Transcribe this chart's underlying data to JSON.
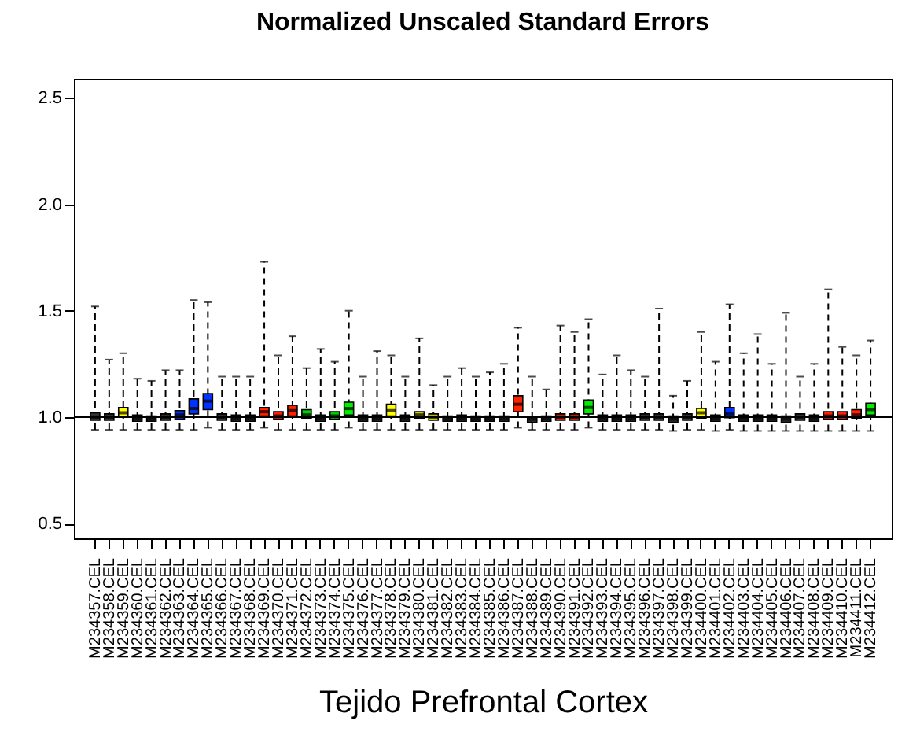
{
  "chart_data": {
    "type": "box",
    "title": "Normalized Unscaled Standard Errors",
    "xlabel": "Tejido Prefrontal Cortex",
    "categories": [
      "M234357.CEL",
      "M234358.CEL",
      "M234359.CEL",
      "M234360.CEL",
      "M234361.CEL",
      "M234362.CEL",
      "M234363.CEL",
      "M234364.CEL",
      "M234365.CEL",
      "M234366.CEL",
      "M234367.CEL",
      "M234368.CEL",
      "M234369.CEL",
      "M234370.CEL",
      "M234371.CEL",
      "M234372.CEL",
      "M234373.CEL",
      "M234374.CEL",
      "M234375.CEL",
      "M234376.CEL",
      "M234377.CEL",
      "M234378.CEL",
      "M234379.CEL",
      "M234380.CEL",
      "M234381.CEL",
      "M234382.CEL",
      "M234383.CEL",
      "M234384.CEL",
      "M234385.CEL",
      "M234386.CEL",
      "M234387.CEL",
      "M234388.CEL",
      "M234389.CEL",
      "M234390.CEL",
      "M234391.CEL",
      "M234392.CEL",
      "M234393.CEL",
      "M234394.CEL",
      "M234395.CEL",
      "M234396.CEL",
      "M234397.CEL",
      "M234398.CEL",
      "M234399.CEL",
      "M234400.CEL",
      "M234401.CEL",
      "M234402.CEL",
      "M234403.CEL",
      "M234404.CEL",
      "M234405.CEL",
      "M234406.CEL",
      "M234407.CEL",
      "M234408.CEL",
      "M234409.CEL",
      "M234410.CEL",
      "M234411.CEL",
      "M234412.CEL"
    ],
    "boxes": [
      {
        "low": 0.94,
        "q1": 0.985,
        "median": 1.0,
        "q3": 1.02,
        "high": 1.52
      },
      {
        "low": 0.94,
        "q1": 0.985,
        "median": 1.0,
        "q3": 1.015,
        "high": 1.27
      },
      {
        "low": 0.94,
        "q1": 1.0,
        "median": 1.02,
        "q3": 1.045,
        "high": 1.3
      },
      {
        "low": 0.94,
        "q1": 0.98,
        "median": 0.995,
        "q3": 1.01,
        "high": 1.18
      },
      {
        "low": 0.94,
        "q1": 0.98,
        "median": 0.99,
        "q3": 1.005,
        "high": 1.17
      },
      {
        "low": 0.94,
        "q1": 0.985,
        "median": 1.0,
        "q3": 1.015,
        "high": 1.22
      },
      {
        "low": 0.94,
        "q1": 0.99,
        "median": 1.01,
        "q3": 1.03,
        "high": 1.22
      },
      {
        "low": 0.94,
        "q1": 1.015,
        "median": 1.04,
        "q3": 1.085,
        "high": 1.55
      },
      {
        "low": 0.95,
        "q1": 1.035,
        "median": 1.075,
        "q3": 1.11,
        "high": 1.54
      },
      {
        "low": 0.94,
        "q1": 0.985,
        "median": 1.0,
        "q3": 1.015,
        "high": 1.19
      },
      {
        "low": 0.94,
        "q1": 0.98,
        "median": 0.995,
        "q3": 1.01,
        "high": 1.19
      },
      {
        "low": 0.94,
        "q1": 0.98,
        "median": 0.995,
        "q3": 1.01,
        "high": 1.19
      },
      {
        "low": 0.95,
        "q1": 1.005,
        "median": 1.025,
        "q3": 1.045,
        "high": 1.73
      },
      {
        "low": 0.94,
        "q1": 0.99,
        "median": 1.005,
        "q3": 1.025,
        "high": 1.29
      },
      {
        "low": 0.94,
        "q1": 1.005,
        "median": 1.03,
        "q3": 1.055,
        "high": 1.38
      },
      {
        "low": 0.94,
        "q1": 0.995,
        "median": 1.01,
        "q3": 1.035,
        "high": 1.23
      },
      {
        "low": 0.94,
        "q1": 0.98,
        "median": 0.995,
        "q3": 1.01,
        "high": 1.32
      },
      {
        "low": 0.94,
        "q1": 0.99,
        "median": 1.005,
        "q3": 1.025,
        "high": 1.26
      },
      {
        "low": 0.95,
        "q1": 1.01,
        "median": 1.04,
        "q3": 1.07,
        "high": 1.5
      },
      {
        "low": 0.94,
        "q1": 0.98,
        "median": 0.995,
        "q3": 1.01,
        "high": 1.19
      },
      {
        "low": 0.94,
        "q1": 0.98,
        "median": 0.995,
        "q3": 1.01,
        "high": 1.31
      },
      {
        "low": 0.94,
        "q1": 1.005,
        "median": 1.03,
        "q3": 1.06,
        "high": 1.29
      },
      {
        "low": 0.94,
        "q1": 0.98,
        "median": 0.995,
        "q3": 1.01,
        "high": 1.19
      },
      {
        "low": 0.94,
        "q1": 0.995,
        "median": 1.01,
        "q3": 1.025,
        "high": 1.37
      },
      {
        "low": 0.94,
        "q1": 0.985,
        "median": 1.0,
        "q3": 1.015,
        "high": 1.15
      },
      {
        "low": 0.94,
        "q1": 0.98,
        "median": 0.99,
        "q3": 1.005,
        "high": 1.19
      },
      {
        "low": 0.94,
        "q1": 0.98,
        "median": 0.995,
        "q3": 1.01,
        "high": 1.23
      },
      {
        "low": 0.94,
        "q1": 0.98,
        "median": 0.99,
        "q3": 1.005,
        "high": 1.19
      },
      {
        "low": 0.94,
        "q1": 0.98,
        "median": 0.99,
        "q3": 1.005,
        "high": 1.21
      },
      {
        "low": 0.94,
        "q1": 0.98,
        "median": 0.995,
        "q3": 1.005,
        "high": 1.25
      },
      {
        "low": 0.95,
        "q1": 1.025,
        "median": 1.06,
        "q3": 1.1,
        "high": 1.42
      },
      {
        "low": 0.94,
        "q1": 0.975,
        "median": 0.99,
        "q3": 1.0,
        "high": 1.19
      },
      {
        "low": 0.94,
        "q1": 0.98,
        "median": 0.995,
        "q3": 1.005,
        "high": 1.13
      },
      {
        "low": 0.94,
        "q1": 0.985,
        "median": 1.0,
        "q3": 1.015,
        "high": 1.43
      },
      {
        "low": 0.94,
        "q1": 0.985,
        "median": 1.0,
        "q3": 1.015,
        "high": 1.4
      },
      {
        "low": 0.95,
        "q1": 1.015,
        "median": 1.045,
        "q3": 1.08,
        "high": 1.46
      },
      {
        "low": 0.94,
        "q1": 0.98,
        "median": 0.995,
        "q3": 1.01,
        "high": 1.2
      },
      {
        "low": 0.94,
        "q1": 0.98,
        "median": 0.995,
        "q3": 1.01,
        "high": 1.29
      },
      {
        "low": 0.94,
        "q1": 0.98,
        "median": 0.995,
        "q3": 1.01,
        "high": 1.22
      },
      {
        "low": 0.94,
        "q1": 0.985,
        "median": 1.0,
        "q3": 1.015,
        "high": 1.19
      },
      {
        "low": 0.94,
        "q1": 0.985,
        "median": 1.0,
        "q3": 1.015,
        "high": 1.51
      },
      {
        "low": 0.935,
        "q1": 0.975,
        "median": 0.99,
        "q3": 1.005,
        "high": 1.1
      },
      {
        "low": 0.94,
        "q1": 0.985,
        "median": 1.0,
        "q3": 1.015,
        "high": 1.17
      },
      {
        "low": 0.94,
        "q1": 0.995,
        "median": 1.02,
        "q3": 1.04,
        "high": 1.4
      },
      {
        "low": 0.935,
        "q1": 0.98,
        "median": 0.995,
        "q3": 1.01,
        "high": 1.26
      },
      {
        "low": 0.94,
        "q1": 0.997,
        "median": 1.015,
        "q3": 1.045,
        "high": 1.53
      },
      {
        "low": 0.935,
        "q1": 0.98,
        "median": 0.995,
        "q3": 1.01,
        "high": 1.3
      },
      {
        "low": 0.935,
        "q1": 0.98,
        "median": 0.995,
        "q3": 1.01,
        "high": 1.39
      },
      {
        "low": 0.935,
        "q1": 0.98,
        "median": 0.995,
        "q3": 1.01,
        "high": 1.25
      },
      {
        "low": 0.935,
        "q1": 0.975,
        "median": 0.99,
        "q3": 1.005,
        "high": 1.49
      },
      {
        "low": 0.935,
        "q1": 0.985,
        "median": 1.0,
        "q3": 1.015,
        "high": 1.19
      },
      {
        "low": 0.935,
        "q1": 0.98,
        "median": 0.995,
        "q3": 1.01,
        "high": 1.25
      },
      {
        "low": 0.935,
        "q1": 0.99,
        "median": 1.005,
        "q3": 1.025,
        "high": 1.6
      },
      {
        "low": 0.935,
        "q1": 0.99,
        "median": 1.005,
        "q3": 1.025,
        "high": 1.33
      },
      {
        "low": 0.935,
        "q1": 0.995,
        "median": 1.01,
        "q3": 1.035,
        "high": 1.29
      },
      {
        "low": 0.935,
        "q1": 1.01,
        "median": 1.035,
        "q3": 1.065,
        "high": 1.36
      }
    ],
    "colors": [
      "#333333",
      "#333333",
      "#ffff00",
      "#333333",
      "#333333",
      "#333333",
      "#0033ff",
      "#0033ff",
      "#0033ff",
      "#333333",
      "#333333",
      "#333333",
      "#ff2200",
      "#ff2200",
      "#ff2200",
      "#00cc00",
      "#333333",
      "#00cc00",
      "#00ee00",
      "#333333",
      "#333333",
      "#ffff00",
      "#333333",
      "#cccc00",
      "#cccc00",
      "#333333",
      "#333333",
      "#333333",
      "#333333",
      "#333333",
      "#ff2200",
      "#333333",
      "#333333",
      "#cc2200",
      "#cc2200",
      "#00ee00",
      "#333333",
      "#333333",
      "#333333",
      "#333333",
      "#333333",
      "#333333",
      "#333333",
      "#ffff00",
      "#333333",
      "#0033ff",
      "#333333",
      "#333333",
      "#333333",
      "#333333",
      "#333333",
      "#333333",
      "#ff2200",
      "#ff2200",
      "#ff2200",
      "#00ee00"
    ],
    "ylim": [
      0.43,
      2.59
    ],
    "yticks": [
      {
        "value": 0.5,
        "label": "0.5"
      },
      {
        "value": 1,
        "label": "1.0"
      },
      {
        "value": 1.5,
        "label": "1.5"
      },
      {
        "value": 2,
        "label": "2.0"
      },
      {
        "value": 2.5,
        "label": "2.5"
      }
    ],
    "ref_lines": [
      {
        "axis": "y",
        "value": 1.0
      }
    ]
  }
}
